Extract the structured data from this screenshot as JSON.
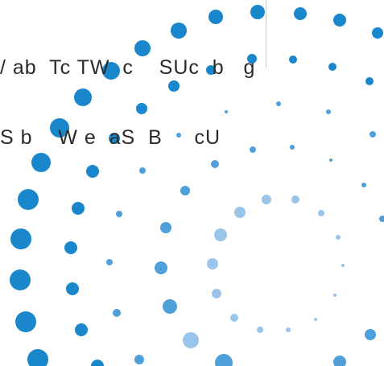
{
  "text": {
    "line1": "/ ab  Tc TW  c    SUc  b   g",
    "line2": "S b    W e  aS  B     cU"
  },
  "colors": {
    "dot_dark": "#1a86cc",
    "dot_mid": "#4f9fd8",
    "dot_light": "#9ac5ea",
    "text": "#2a2a2a",
    "divider": "#c9c9c9"
  }
}
